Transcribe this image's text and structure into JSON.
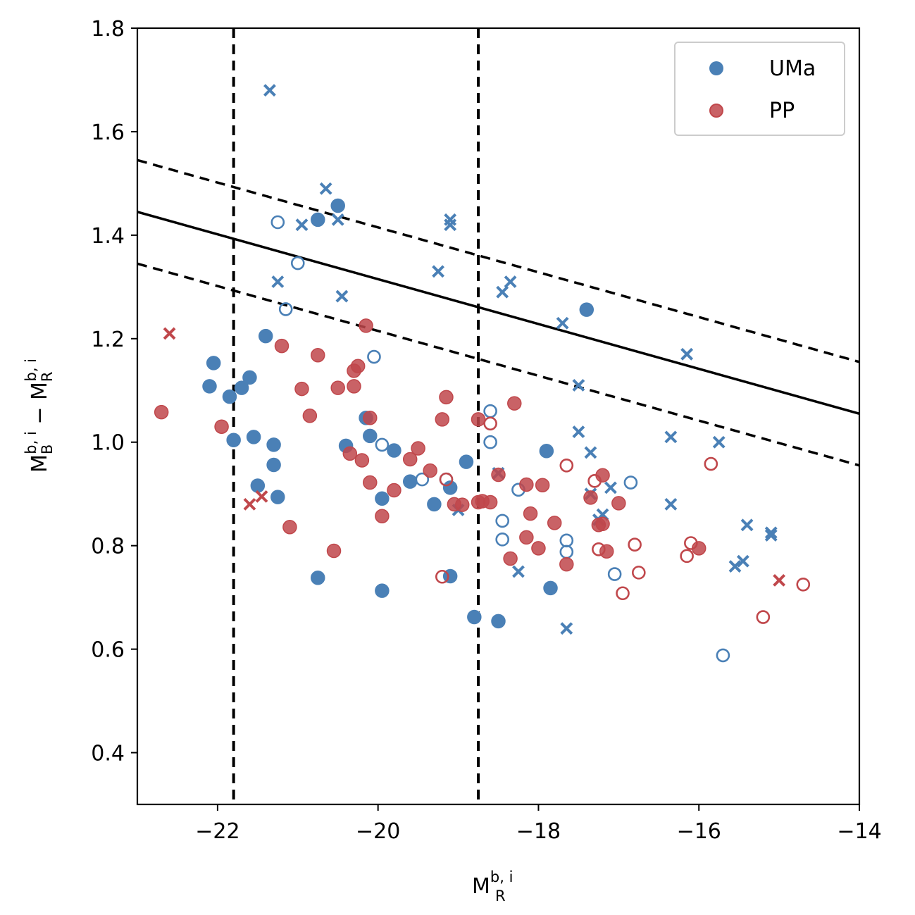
{
  "colors": {
    "uma": "#4a80b6",
    "pp": "#c0474b",
    "line": "#000000"
  },
  "chart_data": {
    "type": "scatter",
    "xlabel": {
      "base": "M",
      "sup": "b, i",
      "sub": "R"
    },
    "ylabel": {
      "base1": "M",
      "sup1": "b, i",
      "sub1": "B",
      "minus": " − ",
      "base2": "M",
      "sup2": "b, i",
      "sub2": "R"
    },
    "xlim": [
      -23,
      -14
    ],
    "ylim": [
      0.3,
      1.8
    ],
    "xticks": [
      -22,
      -20,
      -18,
      -16,
      -14
    ],
    "yticks": [
      0.4,
      0.6,
      0.8,
      1.0,
      1.2,
      1.4,
      1.6,
      1.8
    ],
    "xtick_labels": [
      "−22",
      "−20",
      "−18",
      "−16",
      "−14"
    ],
    "ytick_labels": [
      "0.4",
      "0.6",
      "0.8",
      "1.0",
      "1.2",
      "1.4",
      "1.6",
      "1.8"
    ],
    "legend": {
      "placement": "top-right",
      "entries": [
        {
          "label": "UMa",
          "series": "UMa"
        },
        {
          "label": "PP",
          "series": "PP"
        }
      ]
    },
    "vlines": [
      -21.8,
      -18.75
    ],
    "fit_line": {
      "x": [
        -23,
        -14
      ],
      "y": [
        1.445,
        1.055
      ],
      "style": "solid"
    },
    "fit_offsets": [
      {
        "x": [
          -23,
          -14
        ],
        "y": [
          1.545,
          1.155
        ],
        "style": "dashed"
      },
      {
        "x": [
          -23,
          -14
        ],
        "y": [
          1.345,
          0.955
        ],
        "style": "dashed"
      }
    ],
    "series": [
      {
        "name": "UMa",
        "color": "#4a80b6",
        "filled": [
          [
            -22.1,
            1.108
          ],
          [
            -22.05,
            1.153
          ],
          [
            -21.85,
            1.088
          ],
          [
            -21.8,
            1.004
          ],
          [
            -21.7,
            1.105
          ],
          [
            -21.6,
            1.125
          ],
          [
            -21.55,
            1.01
          ],
          [
            -21.5,
            0.916
          ],
          [
            -21.4,
            1.205
          ],
          [
            -21.3,
            0.995
          ],
          [
            -21.3,
            0.956
          ],
          [
            -21.25,
            0.894
          ],
          [
            -20.75,
            0.738
          ],
          [
            -20.75,
            1.43
          ],
          [
            -20.5,
            1.457
          ],
          [
            -20.4,
            0.993
          ],
          [
            -20.15,
            1.047
          ],
          [
            -20.1,
            1.012
          ],
          [
            -19.95,
            0.891
          ],
          [
            -19.95,
            0.713
          ],
          [
            -19.8,
            0.984
          ],
          [
            -19.6,
            0.924
          ],
          [
            -19.3,
            0.88
          ],
          [
            -19.1,
            0.912
          ],
          [
            -19.1,
            0.741
          ],
          [
            -18.9,
            0.962
          ],
          [
            -18.8,
            0.662
          ],
          [
            -18.5,
            0.654
          ],
          [
            -17.9,
            0.983
          ],
          [
            -17.85,
            0.718
          ],
          [
            -17.4,
            1.256
          ]
        ],
        "open": [
          [
            -21.25,
            1.425
          ],
          [
            -21.15,
            1.257
          ],
          [
            -21.0,
            1.346
          ],
          [
            -20.05,
            1.165
          ],
          [
            -19.95,
            0.995
          ],
          [
            -19.45,
            0.928
          ],
          [
            -19.15,
            0.928
          ],
          [
            -18.6,
            1.06
          ],
          [
            -18.6,
            1.0
          ],
          [
            -18.45,
            0.848
          ],
          [
            -18.45,
            0.812
          ],
          [
            -18.25,
            0.908
          ],
          [
            -17.65,
            0.81
          ],
          [
            -17.65,
            0.788
          ],
          [
            -17.05,
            0.745
          ],
          [
            -16.85,
            0.922
          ],
          [
            -15.7,
            0.588
          ]
        ],
        "cross": [
          [
            -21.35,
            1.68
          ],
          [
            -21.25,
            1.31
          ],
          [
            -20.95,
            1.42
          ],
          [
            -20.65,
            1.49
          ],
          [
            -20.5,
            1.43
          ],
          [
            -20.45,
            1.282
          ],
          [
            -19.25,
            1.33
          ],
          [
            -19.1,
            1.43
          ],
          [
            -19.1,
            1.42
          ],
          [
            -19.0,
            0.869
          ],
          [
            -18.5,
            0.94
          ],
          [
            -18.45,
            1.29
          ],
          [
            -18.35,
            1.31
          ],
          [
            -18.25,
            0.75
          ],
          [
            -17.7,
            1.23
          ],
          [
            -17.65,
            0.64
          ],
          [
            -17.5,
            1.11
          ],
          [
            -17.5,
            1.02
          ],
          [
            -17.35,
            0.98
          ],
          [
            -17.35,
            0.9
          ],
          [
            -17.25,
            0.85
          ],
          [
            -17.2,
            0.86
          ],
          [
            -17.1,
            0.912
          ],
          [
            -16.35,
            1.01
          ],
          [
            -16.35,
            0.88
          ],
          [
            -16.15,
            1.17
          ],
          [
            -15.75,
            1.0
          ],
          [
            -15.55,
            0.76
          ],
          [
            -15.45,
            0.77
          ],
          [
            -15.4,
            0.84
          ],
          [
            -15.1,
            0.825
          ],
          [
            -15.1,
            0.82
          ]
        ]
      },
      {
        "name": "PP",
        "color": "#c0474b",
        "filled": [
          [
            -22.7,
            1.058
          ],
          [
            -21.95,
            1.03
          ],
          [
            -21.2,
            1.186
          ],
          [
            -21.1,
            0.836
          ],
          [
            -20.95,
            1.103
          ],
          [
            -20.85,
            1.051
          ],
          [
            -20.75,
            1.168
          ],
          [
            -20.55,
            0.79
          ],
          [
            -20.5,
            1.105
          ],
          [
            -20.35,
            0.978
          ],
          [
            -20.3,
            1.108
          ],
          [
            -20.3,
            1.138
          ],
          [
            -20.25,
            1.147
          ],
          [
            -20.2,
            0.965
          ],
          [
            -20.15,
            1.225
          ],
          [
            -20.1,
            0.922
          ],
          [
            -20.1,
            1.047
          ],
          [
            -19.95,
            0.857
          ],
          [
            -19.8,
            0.907
          ],
          [
            -19.6,
            0.967
          ],
          [
            -19.5,
            0.988
          ],
          [
            -19.35,
            0.945
          ],
          [
            -19.2,
            1.044
          ],
          [
            -19.15,
            1.087
          ],
          [
            -19.05,
            0.88
          ],
          [
            -18.95,
            0.879
          ],
          [
            -18.75,
            1.044
          ],
          [
            -18.75,
            0.884
          ],
          [
            -18.7,
            0.886
          ],
          [
            -18.6,
            0.884
          ],
          [
            -18.5,
            0.937
          ],
          [
            -18.35,
            0.775
          ],
          [
            -18.3,
            1.075
          ],
          [
            -18.15,
            0.918
          ],
          [
            -18.15,
            0.816
          ],
          [
            -18.1,
            0.862
          ],
          [
            -18.0,
            0.795
          ],
          [
            -17.95,
            0.917
          ],
          [
            -17.8,
            0.844
          ],
          [
            -17.65,
            0.764
          ],
          [
            -17.35,
            0.893
          ],
          [
            -17.25,
            0.84
          ],
          [
            -17.2,
            0.936
          ],
          [
            -17.2,
            0.842
          ],
          [
            -17.15,
            0.789
          ],
          [
            -17.0,
            0.882
          ],
          [
            -16.0,
            0.795
          ]
        ],
        "open": [
          [
            -19.2,
            0.74
          ],
          [
            -19.15,
            0.928
          ],
          [
            -18.6,
            1.036
          ],
          [
            -17.65,
            0.955
          ],
          [
            -17.3,
            0.925
          ],
          [
            -17.25,
            0.793
          ],
          [
            -16.95,
            0.708
          ],
          [
            -16.8,
            0.802
          ],
          [
            -16.75,
            0.748
          ],
          [
            -16.15,
            0.78
          ],
          [
            -16.1,
            0.805
          ],
          [
            -15.85,
            0.958
          ],
          [
            -15.2,
            0.662
          ],
          [
            -14.7,
            0.725
          ]
        ],
        "cross": [
          [
            -22.6,
            1.21
          ],
          [
            -21.6,
            0.88
          ],
          [
            -21.45,
            0.895
          ],
          [
            -15.0,
            0.733
          ]
        ]
      }
    ]
  }
}
